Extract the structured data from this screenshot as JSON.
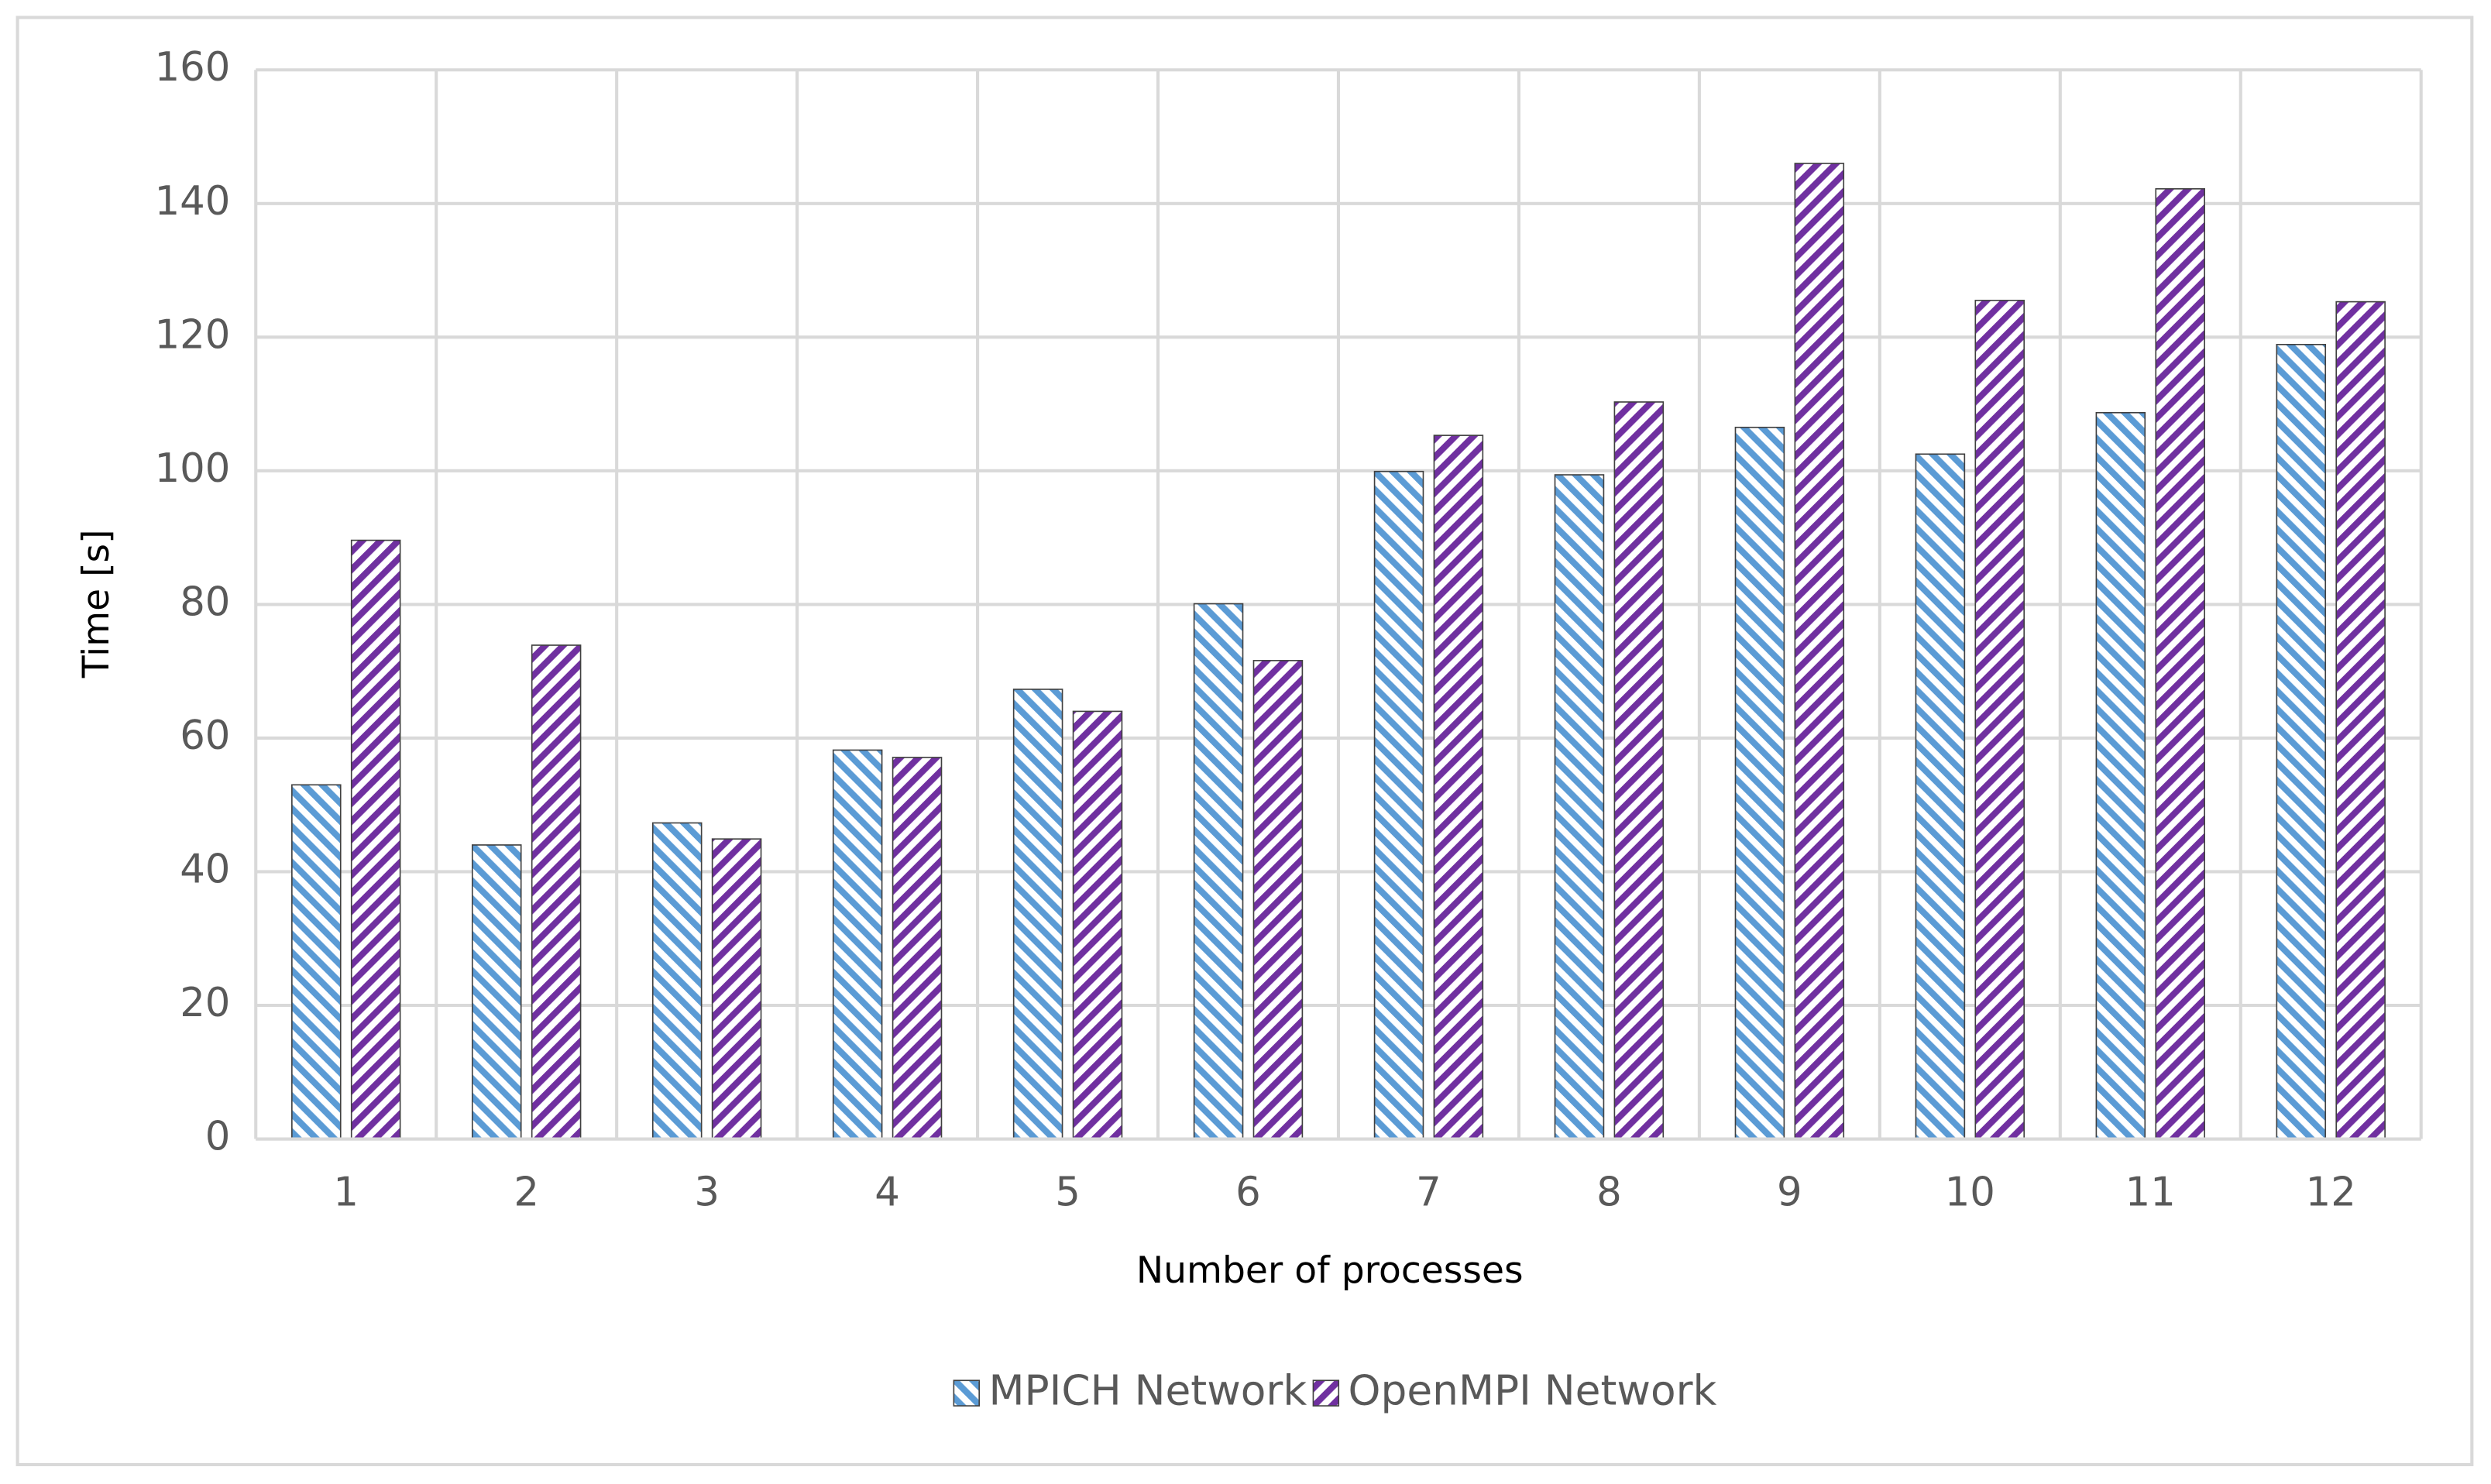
{
  "chart_data": {
    "type": "bar",
    "x_label": "Number of processes",
    "y_label": "Time [s]",
    "categories": [
      "1",
      "2",
      "3",
      "4",
      "5",
      "6",
      "7",
      "8",
      "9",
      "10",
      "11",
      "12"
    ],
    "series": [
      {
        "name": "MPICH Network",
        "color": "#5b9bd5",
        "values": [
          53.0,
          44.0,
          47.3,
          58.2,
          67.3,
          80.1,
          99.9,
          99.4,
          106.5,
          102.5,
          108.7,
          118.9
        ]
      },
      {
        "name": "OpenMPI Network",
        "color": "#7030a0",
        "values": [
          89.6,
          73.9,
          44.9,
          57.1,
          64.0,
          71.6,
          105.3,
          110.3,
          146.0,
          125.5,
          142.2,
          125.3
        ]
      }
    ],
    "ylim": [
      0,
      160
    ],
    "yticks": [
      0,
      20,
      40,
      60,
      80,
      100,
      120,
      140,
      160
    ],
    "grid": true,
    "legend": "bottom"
  }
}
